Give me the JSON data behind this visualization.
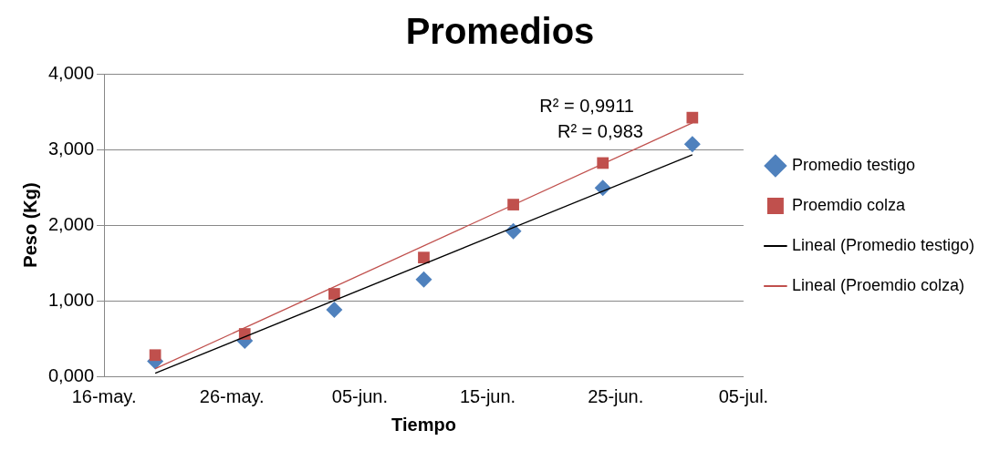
{
  "chart_data": {
    "type": "scatter",
    "title": "Promedios",
    "xlabel": "Tiempo",
    "ylabel": "Peso (Kg)",
    "x": [
      "--05-20",
      "--05-27",
      "--06-03",
      "--06-10",
      "--06-17",
      "--06-24",
      "--07-01"
    ],
    "series": [
      {
        "name": "Promedio testigo",
        "color": "#4f81bd",
        "marker": "diamond",
        "values": [
          0.2,
          0.47,
          0.88,
          1.28,
          1.92,
          2.49,
          3.07
        ]
      },
      {
        "name": "Proemdio colza",
        "color": "#c0504d",
        "marker": "square",
        "values": [
          0.28,
          0.56,
          1.09,
          1.57,
          2.27,
          2.82,
          3.42
        ]
      },
      {
        "name": "Lineal (Promedio testigo)",
        "type": "line",
        "color": "#000000",
        "marker": "none",
        "x": [
          "--05-20",
          "--07-01"
        ],
        "values": [
          0.04,
          2.93
        ]
      },
      {
        "name": "Lineal (Proemdio colza)",
        "type": "line",
        "color": "#c0504d",
        "marker": "none",
        "x": [
          "--05-20",
          "--07-01"
        ],
        "values": [
          0.1,
          3.35
        ]
      }
    ],
    "xlim": [
      "--05-16",
      "--07-05"
    ],
    "xticks": [
      {
        "value": "--05-16",
        "label": "16-may."
      },
      {
        "value": "--05-26",
        "label": "26-may."
      },
      {
        "value": "--06-05",
        "label": "05-jun."
      },
      {
        "value": "--06-15",
        "label": "15-jun."
      },
      {
        "value": "--06-25",
        "label": "25-jun."
      },
      {
        "value": "--07-05",
        "label": "05-jul."
      }
    ],
    "ylim": [
      0,
      4
    ],
    "yticks": [
      {
        "value": 0,
        "label": "0,000"
      },
      {
        "value": 1,
        "label": "1,000"
      },
      {
        "value": 2,
        "label": "2,000"
      },
      {
        "value": 3,
        "label": "3,000"
      },
      {
        "value": 4,
        "label": "4,000"
      }
    ],
    "grid": "y",
    "legend": "right",
    "annotations": [
      "R² = 0,9911",
      "R² = 0,983"
    ]
  }
}
